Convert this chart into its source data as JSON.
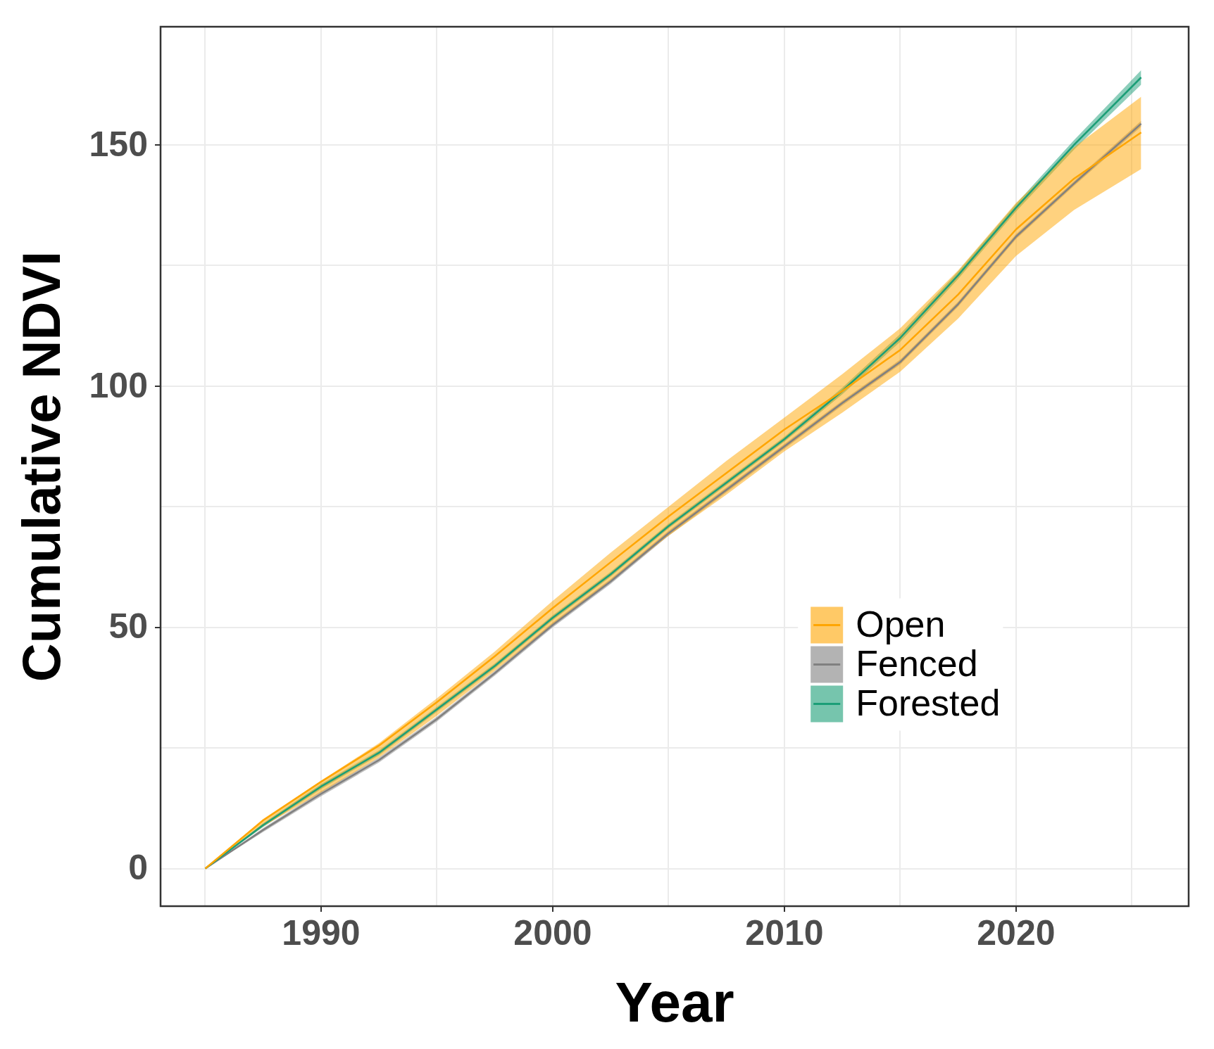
{
  "chart_data": {
    "type": "line",
    "xlabel": "Year",
    "ylabel": "Cumulative NDVI",
    "x": [
      1985,
      1987.5,
      1990,
      1992.5,
      1995,
      1997.5,
      2000,
      2002.5,
      2005,
      2007.5,
      2010,
      2012.5,
      2015,
      2017.5,
      2020,
      2022.5,
      2025.4
    ],
    "series": [
      {
        "name": "Open",
        "color": "#ffa500",
        "values": [
          0,
          10,
          18,
          25.5,
          34.5,
          44,
          54,
          63.5,
          73,
          82,
          91,
          99,
          107.5,
          119,
          132.5,
          143,
          152.6
        ],
        "lower": [
          0,
          8.7,
          15.8,
          23,
          31.7,
          41,
          50.5,
          59.5,
          69,
          77.5,
          86.5,
          94.5,
          103,
          114,
          127,
          136.5,
          145
        ],
        "upper": [
          0,
          10.3,
          18.2,
          26,
          35.3,
          45,
          55.5,
          65.5,
          75,
          84.5,
          93.5,
          102.5,
          112,
          124,
          138,
          149.5,
          160
        ]
      },
      {
        "name": "Fenced",
        "color": "#808080",
        "values": [
          0,
          8,
          15.5,
          22.5,
          31,
          40.5,
          50.5,
          59.5,
          69.5,
          78.5,
          87.5,
          96.5,
          105,
          117,
          131,
          142,
          154.4
        ],
        "lower": [
          0,
          7.6,
          15,
          22,
          30.5,
          40,
          50,
          59,
          69,
          78,
          87,
          96,
          104.5,
          116.5,
          130.5,
          141.5,
          153.8
        ],
        "upper": [
          0,
          8.4,
          16,
          23,
          31.5,
          41,
          51,
          60,
          70,
          79,
          88,
          97,
          105.5,
          117.5,
          131.5,
          142.5,
          155
        ]
      },
      {
        "name": "Forested",
        "color": "#1b9e77",
        "values": [
          0,
          9,
          17,
          24,
          33,
          42,
          52,
          61,
          71,
          80,
          89,
          99,
          110,
          123,
          137,
          150,
          164
        ],
        "lower": [
          0,
          8.6,
          16.5,
          23.5,
          32.5,
          41.5,
          51.5,
          60.5,
          70.5,
          79.5,
          88.5,
          98.3,
          109.2,
          122.2,
          136.2,
          149,
          162.5
        ],
        "upper": [
          0,
          9.4,
          17.5,
          24.5,
          33.5,
          42.5,
          52.5,
          61.5,
          71.5,
          80.5,
          89.5,
          99.7,
          110.8,
          123.8,
          137.8,
          151,
          165.5
        ]
      }
    ],
    "xlim": [
      1983.07,
      2027.45
    ],
    "xticks": [
      {
        "value": 1985,
        "label": null
      },
      1990,
      {
        "value": 1995,
        "label": null
      },
      2000,
      {
        "value": 2005,
        "label": null
      },
      2010,
      {
        "value": 2015,
        "label": null
      },
      2020,
      {
        "value": 2025,
        "label": null
      }
    ],
    "ylim": [
      -7.8,
      174.5
    ],
    "yticks": [
      0,
      {
        "value": 25,
        "label": null
      },
      50,
      {
        "value": 75,
        "label": null
      },
      100,
      {
        "value": 125,
        "label": null
      },
      150
    ],
    "grid": true,
    "legend": "bottom right",
    "marker": "none",
    "line_style": "solid"
  }
}
